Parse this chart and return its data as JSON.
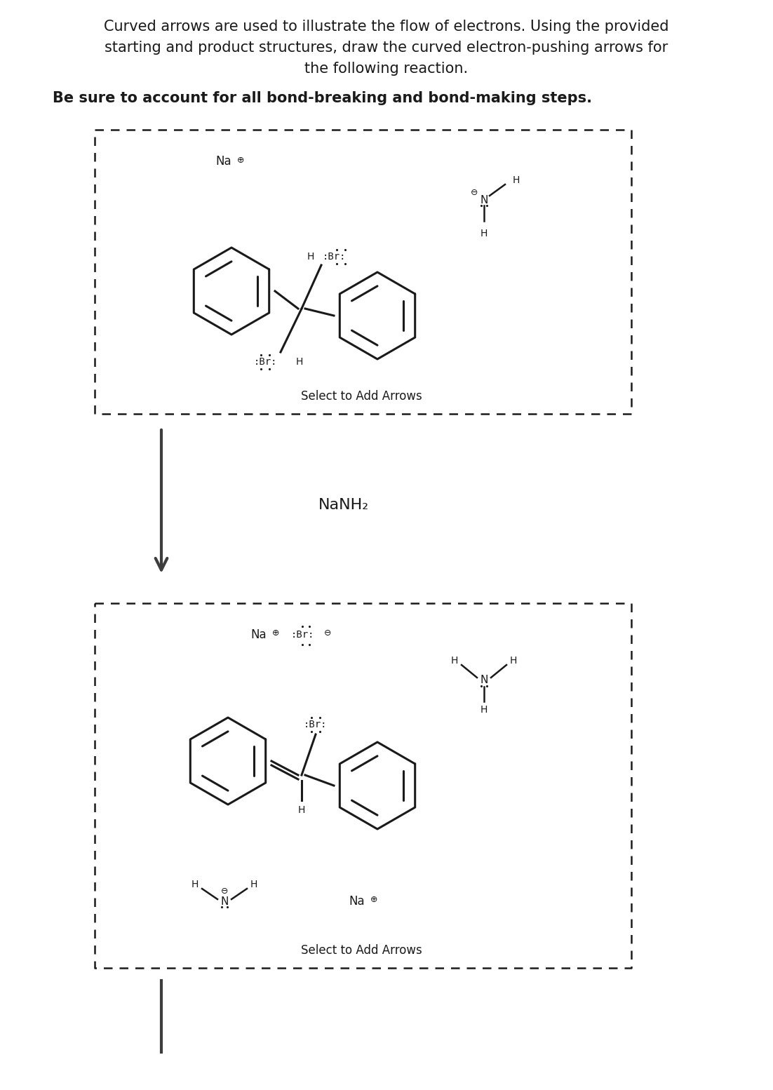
{
  "title_line1": "Curved arrows are used to illustrate the flow of electrons. Using the provided",
  "title_line2": "starting and product structures, draw the curved electron-pushing arrows for",
  "title_line3": "the following reaction.",
  "subtitle": "Be sure to account for all bond-breaking and bond-making steps.",
  "reagent": "NaNH₂",
  "select_text": "Select to Add Arrows",
  "background_color": "#ffffff",
  "text_color": "#1a1a1a",
  "box_color": "#1a1a1a",
  "arrow_color": "#3d3d3d",
  "fig_width": 11.02,
  "fig_height": 15.54,
  "dpi": 100
}
